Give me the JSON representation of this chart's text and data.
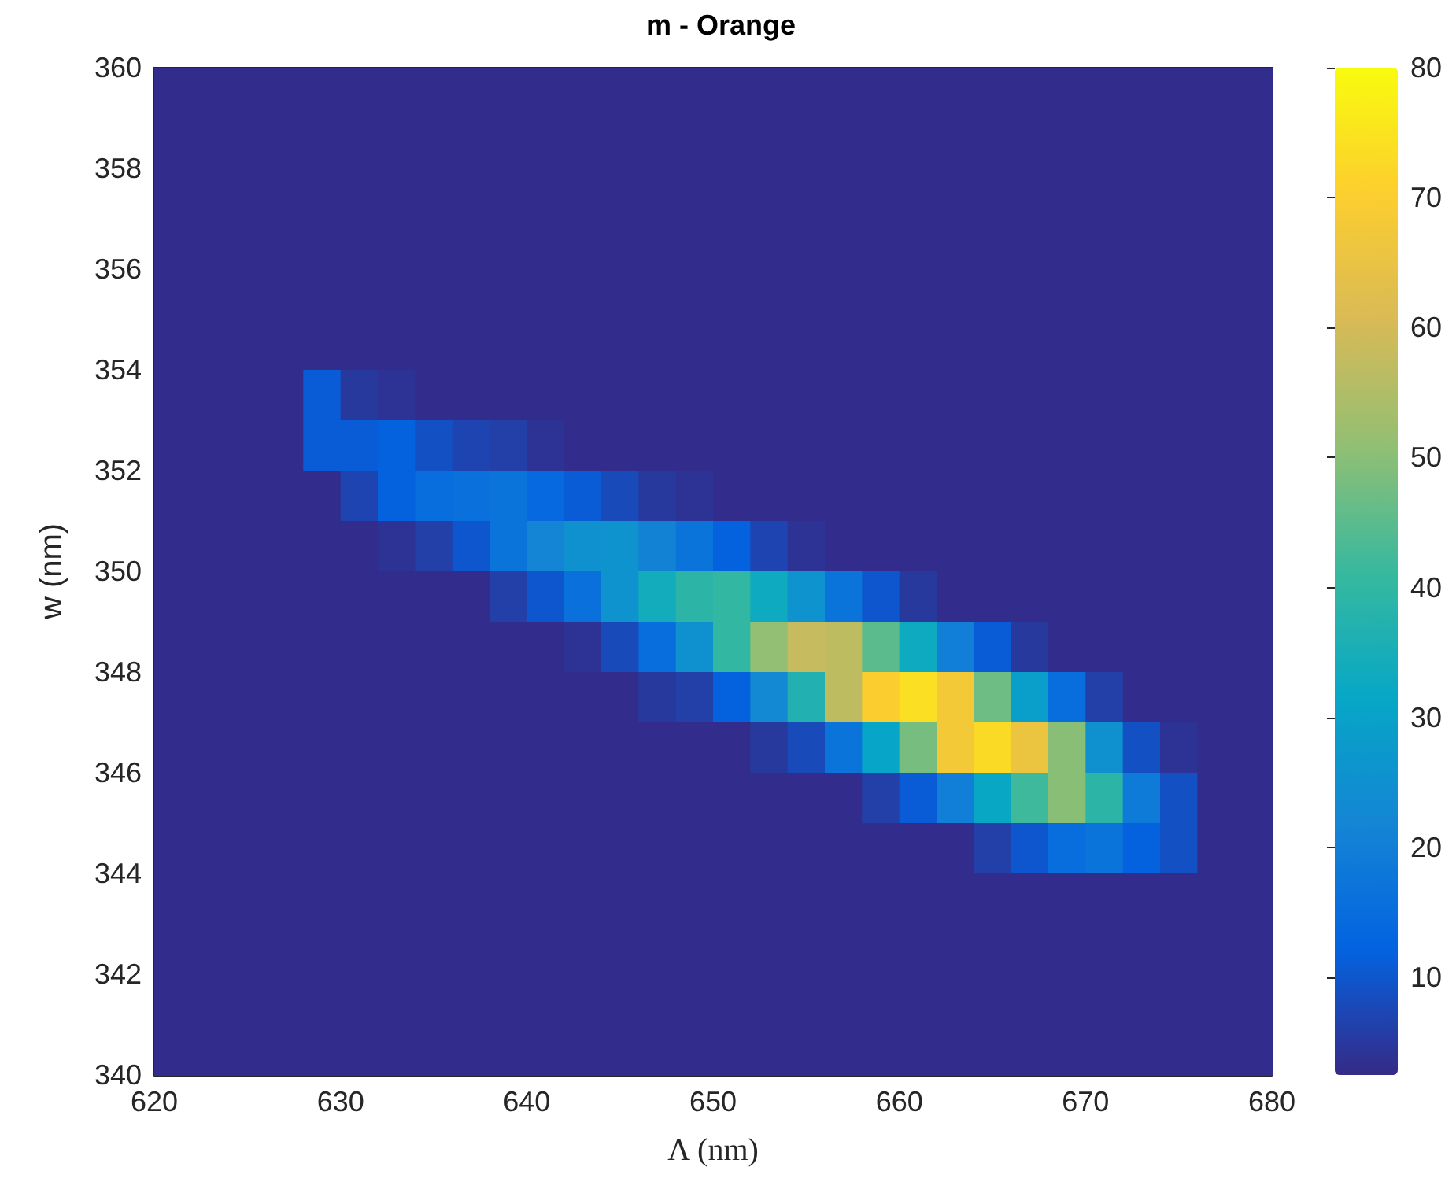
{
  "chart_data": {
    "type": "heatmap",
    "title": "m - Orange",
    "xlabel": "Λ (nm)",
    "ylabel": "w (nm)",
    "x": [
      621,
      623,
      625,
      627,
      629,
      631,
      633,
      635,
      637,
      639,
      641,
      643,
      645,
      647,
      649,
      651,
      653,
      655,
      657,
      659,
      661,
      663,
      665,
      667,
      669,
      671,
      673,
      675,
      677,
      679
    ],
    "y": [
      359.5,
      358.5,
      357.5,
      356.5,
      355.5,
      354.5,
      353.5,
      352.5,
      351.5,
      350.5,
      349.5,
      348.5,
      347.5,
      346.5,
      345.5,
      344.5,
      343.5,
      342.5,
      341.5,
      340.5
    ],
    "cells": [
      [
        3,
        3,
        3,
        3,
        3,
        3,
        3,
        3,
        3,
        3,
        3,
        3,
        3,
        3,
        3,
        3,
        3,
        3,
        3,
        3,
        3,
        3,
        3,
        3,
        3,
        3,
        3,
        3,
        3,
        3
      ],
      [
        3,
        3,
        3,
        3,
        3,
        3,
        3,
        3,
        3,
        3,
        3,
        3,
        3,
        3,
        3,
        3,
        3,
        3,
        3,
        3,
        3,
        3,
        3,
        3,
        3,
        3,
        3,
        3,
        3,
        3
      ],
      [
        3,
        3,
        3,
        3,
        3,
        3,
        3,
        3,
        3,
        3,
        3,
        3,
        3,
        3,
        3,
        3,
        3,
        3,
        3,
        3,
        3,
        3,
        3,
        3,
        3,
        3,
        3,
        3,
        3,
        3
      ],
      [
        3,
        3,
        3,
        3,
        3,
        3,
        3,
        3,
        3,
        3,
        3,
        3,
        3,
        3,
        3,
        3,
        3,
        3,
        3,
        3,
        3,
        3,
        3,
        3,
        3,
        3,
        3,
        3,
        3,
        3
      ],
      [
        3,
        3,
        3,
        3,
        3,
        3,
        3,
        3,
        3,
        3,
        3,
        3,
        3,
        3,
        3,
        3,
        3,
        3,
        3,
        3,
        3,
        3,
        3,
        3,
        3,
        3,
        3,
        3,
        3,
        3
      ],
      [
        3,
        3,
        3,
        3,
        3,
        3,
        3,
        3,
        3,
        3,
        3,
        3,
        3,
        3,
        3,
        3,
        3,
        3,
        3,
        3,
        3,
        3,
        3,
        3,
        3,
        3,
        3,
        3,
        3,
        3
      ],
      [
        3,
        3,
        3,
        3,
        11,
        5,
        4,
        3,
        3,
        3,
        3,
        3,
        3,
        3,
        3,
        3,
        3,
        3,
        3,
        3,
        3,
        3,
        3,
        3,
        3,
        3,
        3,
        3,
        3,
        3
      ],
      [
        3,
        3,
        3,
        3,
        11,
        11,
        12,
        9,
        7,
        6,
        4,
        3,
        3,
        3,
        3,
        3,
        3,
        3,
        3,
        3,
        3,
        3,
        3,
        3,
        3,
        3,
        3,
        3,
        3,
        3
      ],
      [
        3,
        3,
        3,
        3,
        3,
        7,
        12,
        15,
        16,
        17,
        14,
        11,
        8,
        5,
        4,
        3,
        3,
        3,
        3,
        3,
        3,
        3,
        3,
        3,
        3,
        3,
        3,
        3,
        3,
        3
      ],
      [
        3,
        3,
        3,
        3,
        3,
        3,
        4,
        6,
        10,
        17,
        22,
        25,
        26,
        21,
        17,
        12,
        7,
        4,
        3,
        3,
        3,
        3,
        3,
        3,
        3,
        3,
        3,
        3,
        3,
        3
      ],
      [
        3,
        3,
        3,
        3,
        3,
        3,
        3,
        3,
        3,
        6,
        10,
        16,
        26,
        34,
        39,
        40,
        33,
        26,
        17,
        10,
        5,
        3,
        3,
        3,
        3,
        3,
        3,
        3,
        3,
        3
      ],
      [
        3,
        3,
        3,
        3,
        3,
        3,
        3,
        3,
        3,
        3,
        3,
        4,
        8,
        15,
        25,
        40,
        51,
        58,
        57,
        45,
        33,
        20,
        11,
        5,
        3,
        3,
        3,
        3,
        3,
        3
      ],
      [
        3,
        3,
        3,
        3,
        3,
        3,
        3,
        3,
        3,
        3,
        3,
        3,
        3,
        5,
        6,
        12,
        23,
        37,
        57,
        70,
        74,
        68,
        47,
        29,
        15,
        6,
        3,
        3,
        3,
        3
      ],
      [
        3,
        3,
        3,
        3,
        3,
        3,
        3,
        3,
        3,
        3,
        3,
        3,
        3,
        3,
        3,
        3,
        5,
        8,
        17,
        31,
        48,
        68,
        73,
        66,
        50,
        25,
        9,
        4,
        3,
        3
      ],
      [
        3,
        3,
        3,
        3,
        3,
        3,
        3,
        3,
        3,
        3,
        3,
        3,
        3,
        3,
        3,
        3,
        3,
        3,
        3,
        6,
        11,
        20,
        32,
        42,
        50,
        39,
        19,
        9,
        3,
        3
      ],
      [
        3,
        3,
        3,
        3,
        3,
        3,
        3,
        3,
        3,
        3,
        3,
        3,
        3,
        3,
        3,
        3,
        3,
        3,
        3,
        3,
        3,
        3,
        6,
        10,
        15,
        17,
        12,
        9,
        3,
        3
      ],
      [
        3,
        3,
        3,
        3,
        3,
        3,
        3,
        3,
        3,
        3,
        3,
        3,
        3,
        3,
        3,
        3,
        3,
        3,
        3,
        3,
        3,
        3,
        3,
        3,
        3,
        3,
        3,
        3,
        3,
        3
      ],
      [
        3,
        3,
        3,
        3,
        3,
        3,
        3,
        3,
        3,
        3,
        3,
        3,
        3,
        3,
        3,
        3,
        3,
        3,
        3,
        3,
        3,
        3,
        3,
        3,
        3,
        3,
        3,
        3,
        3,
        3
      ],
      [
        3,
        3,
        3,
        3,
        3,
        3,
        3,
        3,
        3,
        3,
        3,
        3,
        3,
        3,
        3,
        3,
        3,
        3,
        3,
        3,
        3,
        3,
        3,
        3,
        3,
        3,
        3,
        3,
        3,
        3
      ],
      [
        3,
        3,
        3,
        3,
        3,
        3,
        3,
        3,
        3,
        3,
        3,
        3,
        3,
        3,
        3,
        3,
        3,
        3,
        3,
        3,
        3,
        3,
        3,
        3,
        3,
        3,
        3,
        3,
        3,
        3
      ]
    ],
    "xlim": [
      620,
      680
    ],
    "xticks": [
      620,
      630,
      640,
      650,
      660,
      670,
      680
    ],
    "ylim": [
      340,
      360
    ],
    "yticks": [
      340,
      342,
      344,
      346,
      348,
      350,
      352,
      354,
      356,
      358,
      360
    ],
    "clim": [
      2.5,
      80
    ],
    "cticks": [
      10,
      20,
      30,
      40,
      50,
      60,
      70,
      80
    ],
    "grid": false
  }
}
